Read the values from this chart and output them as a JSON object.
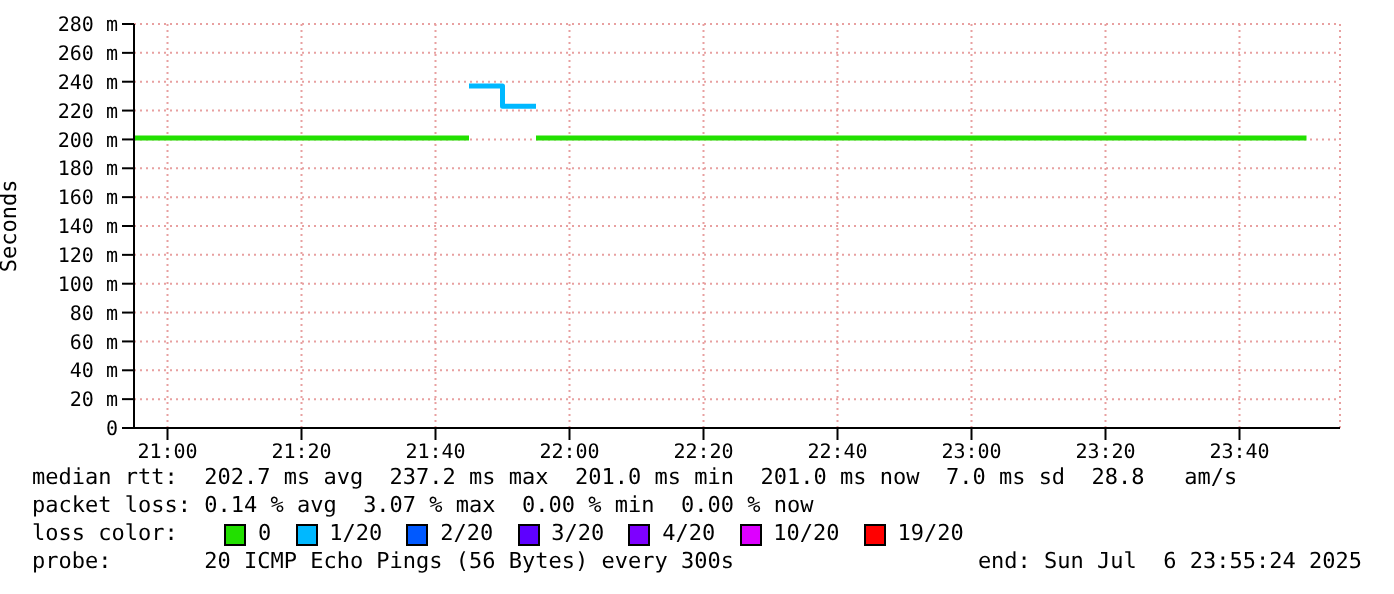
{
  "chart_data": {
    "type": "step",
    "ylabel": "Seconds",
    "legend_title": "loss color:",
    "x": [
      "2025-07-06T20:55",
      "2025-07-06T21:00",
      "2025-07-06T21:05",
      "2025-07-06T21:10",
      "2025-07-06T21:15",
      "2025-07-06T21:20",
      "2025-07-06T21:25",
      "2025-07-06T21:30",
      "2025-07-06T21:35",
      "2025-07-06T21:40",
      "2025-07-06T21:45",
      "2025-07-06T21:50",
      "2025-07-06T21:55",
      "2025-07-06T22:00",
      "2025-07-06T22:05",
      "2025-07-06T22:10",
      "2025-07-06T22:15",
      "2025-07-06T22:20",
      "2025-07-06T22:25",
      "2025-07-06T22:30",
      "2025-07-06T22:35",
      "2025-07-06T22:40",
      "2025-07-06T22:45",
      "2025-07-06T22:50",
      "2025-07-06T22:55",
      "2025-07-06T23:00",
      "2025-07-06T23:05",
      "2025-07-06T23:10",
      "2025-07-06T23:15",
      "2025-07-06T23:20",
      "2025-07-06T23:25",
      "2025-07-06T23:30",
      "2025-07-06T23:35",
      "2025-07-06T23:40",
      "2025-07-06T23:45",
      "2025-07-06T23:50"
    ],
    "series": [
      {
        "name": "0",
        "color": "#22e000",
        "values": [
          201,
          201,
          201,
          201,
          201,
          201,
          201,
          201,
          201,
          201,
          201,
          null,
          201,
          201,
          201,
          201,
          201,
          201,
          201,
          201,
          201,
          201,
          201,
          201,
          201,
          201,
          201,
          201,
          201,
          201,
          201,
          201,
          201,
          201,
          201,
          201
        ]
      },
      {
        "name": "1/20",
        "color": "#00b8ff",
        "values": [
          null,
          null,
          null,
          null,
          null,
          null,
          null,
          null,
          null,
          null,
          237,
          223,
          223,
          null,
          null,
          null,
          null,
          null,
          null,
          null,
          null,
          null,
          null,
          null,
          null,
          null,
          null,
          null,
          null,
          null,
          null,
          null,
          null,
          null,
          null,
          null
        ]
      },
      {
        "name": "2/20",
        "color": "#0059ff",
        "values": [
          null,
          null,
          null,
          null,
          null,
          null,
          null,
          null,
          null,
          null,
          null,
          null,
          null,
          null,
          null,
          null,
          null,
          null,
          null,
          null,
          null,
          null,
          null,
          null,
          null,
          null,
          null,
          null,
          null,
          null,
          null,
          null,
          null,
          null,
          null,
          null
        ]
      },
      {
        "name": "3/20",
        "color": "#5e00ff",
        "values": [
          null,
          null,
          null,
          null,
          null,
          null,
          null,
          null,
          null,
          null,
          null,
          null,
          null,
          null,
          null,
          null,
          null,
          null,
          null,
          null,
          null,
          null,
          null,
          null,
          null,
          null,
          null,
          null,
          null,
          null,
          null,
          null,
          null,
          null,
          null,
          null
        ]
      },
      {
        "name": "4/20",
        "color": "#7e00ff",
        "values": [
          null,
          null,
          null,
          null,
          null,
          null,
          null,
          null,
          null,
          null,
          null,
          null,
          null,
          null,
          null,
          null,
          null,
          null,
          null,
          null,
          null,
          null,
          null,
          null,
          null,
          null,
          null,
          null,
          null,
          null,
          null,
          null,
          null,
          null,
          null,
          null
        ]
      },
      {
        "name": "10/20",
        "color": "#dd00ff",
        "values": [
          null,
          null,
          null,
          null,
          null,
          null,
          null,
          null,
          null,
          null,
          null,
          null,
          null,
          null,
          null,
          null,
          null,
          null,
          null,
          null,
          null,
          null,
          null,
          null,
          null,
          null,
          null,
          null,
          null,
          null,
          null,
          null,
          null,
          null,
          null,
          null
        ]
      },
      {
        "name": "19/20",
        "color": "#ff0000",
        "values": [
          null,
          null,
          null,
          null,
          null,
          null,
          null,
          null,
          null,
          null,
          null,
          null,
          null,
          null,
          null,
          null,
          null,
          null,
          null,
          null,
          null,
          null,
          null,
          null,
          null,
          null,
          null,
          null,
          null,
          null,
          null,
          null,
          null,
          null,
          null,
          null
        ]
      }
    ],
    "xlim": [
      "2025-07-06T20:55",
      "2025-07-06T23:55"
    ],
    "xticks": [
      {
        "value": "2025-07-06T21:00",
        "label": "21:00"
      },
      {
        "value": "2025-07-06T21:20",
        "label": "21:20"
      },
      {
        "value": "2025-07-06T21:40",
        "label": "21:40"
      },
      {
        "value": "2025-07-06T22:00",
        "label": "22:00"
      },
      {
        "value": "2025-07-06T22:20",
        "label": "22:20"
      },
      {
        "value": "2025-07-06T22:40",
        "label": "22:40"
      },
      {
        "value": "2025-07-06T23:00",
        "label": "23:00"
      },
      {
        "value": "2025-07-06T23:20",
        "label": "23:20"
      },
      {
        "value": "2025-07-06T23:40",
        "label": "23:40"
      }
    ],
    "ylim": [
      0,
      280
    ],
    "yticks": [
      0,
      {
        "value": 20,
        "label": "20 m"
      },
      {
        "value": 40,
        "label": "40 m"
      },
      {
        "value": 60,
        "label": "60 m"
      },
      {
        "value": 80,
        "label": "80 m"
      },
      {
        "value": 100,
        "label": "100 m"
      },
      {
        "value": 120,
        "label": "120 m"
      },
      {
        "value": 140,
        "label": "140 m"
      },
      {
        "value": 160,
        "label": "160 m"
      },
      {
        "value": 180,
        "label": "180 m"
      },
      {
        "value": 200,
        "label": "200 m"
      },
      {
        "value": 220,
        "label": "220 m"
      },
      {
        "value": 240,
        "label": "240 m"
      },
      {
        "value": 260,
        "label": "260 m"
      },
      {
        "value": 280,
        "label": "280 m"
      }
    ],
    "grid": true,
    "legend": "bottom",
    "marker": "none",
    "line_style": "solid",
    "annotations": [
      "median rtt:  202.7 ms avg  237.2 ms max  201.0 ms min  201.0 ms now  7.0 ms sd  28.8   am/s",
      "packet loss: 0.14 % avg  3.07 % max  0.00 % min  0.00 % now",
      "probe:       20 ICMP Echo Pings (56 Bytes) every 300s",
      "end: Sun Jul  6 23:55:24 2025"
    ]
  }
}
